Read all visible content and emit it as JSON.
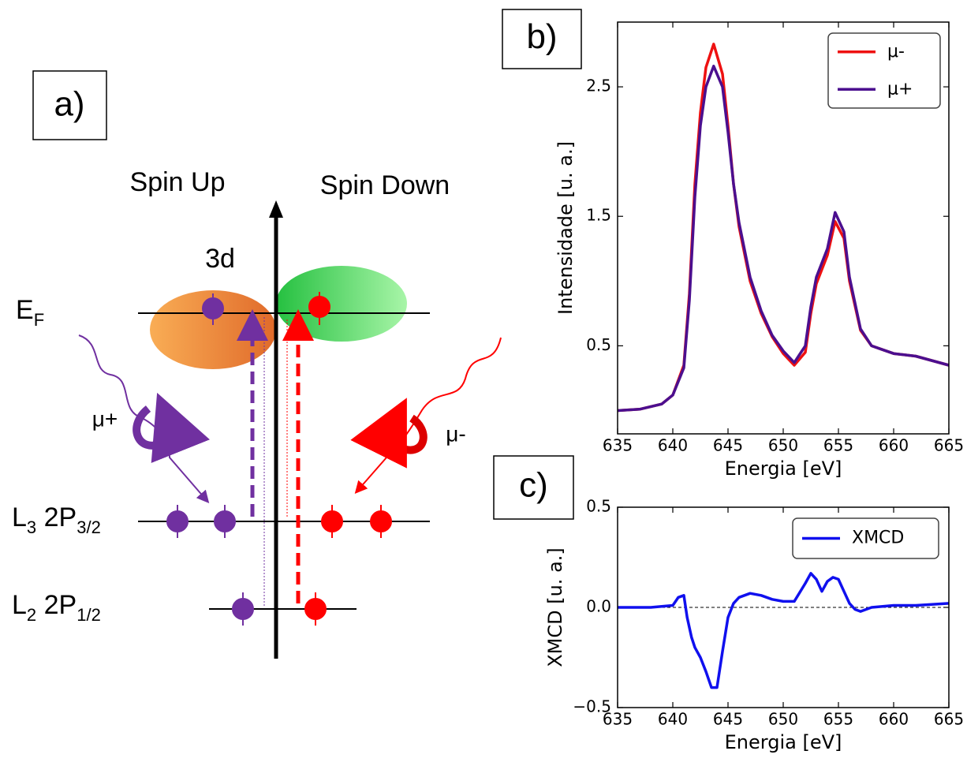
{
  "diagram": {
    "label": "a)",
    "spin_up": "Spin Up",
    "spin_down": "Spin Down",
    "orbital": "3d",
    "fermi": {
      "main": "E",
      "sub": "F"
    },
    "mu_plus": "μ+",
    "mu_minus": "μ-",
    "l3": {
      "main": "L",
      "sub": "3",
      "main2": " 2P",
      "sub2": "3/2"
    },
    "l2": {
      "main": "L",
      "sub": "2",
      "main2": " 2P",
      "sub2": "1/2"
    }
  },
  "chart_data": [
    {
      "type": "line",
      "panel_label": "b)",
      "x_label": "Energia [eV]",
      "y_label": "Intensidade [u. a.]",
      "xlim": [
        635,
        665
      ],
      "xticks": [
        635,
        640,
        645,
        650,
        655,
        660,
        665
      ],
      "ylim": [
        -0.18,
        3.0
      ],
      "yticks": [
        0.5,
        1.5,
        2.5
      ],
      "legend": "upper right",
      "x": [
        635,
        637,
        639,
        640,
        641,
        641.5,
        642,
        642.5,
        643,
        643.7,
        644.5,
        645,
        645.5,
        646,
        647,
        648,
        649,
        650,
        651,
        652,
        652.5,
        653,
        654,
        654.7,
        655.5,
        656,
        657,
        658,
        659,
        660,
        662,
        665
      ],
      "series": [
        {
          "name": "μ-",
          "color": "#ee1111",
          "values": [
            0.0,
            0.01,
            0.05,
            0.12,
            0.35,
            0.9,
            1.75,
            2.3,
            2.65,
            2.83,
            2.6,
            2.2,
            1.75,
            1.42,
            1.0,
            0.75,
            0.57,
            0.44,
            0.35,
            0.45,
            0.75,
            0.98,
            1.2,
            1.46,
            1.33,
            1.0,
            0.62,
            0.5,
            0.47,
            0.44,
            0.42,
            0.35
          ]
        },
        {
          "name": "μ+",
          "color": "#4b0f8f",
          "values": [
            0.0,
            0.01,
            0.05,
            0.12,
            0.33,
            0.85,
            1.65,
            2.2,
            2.5,
            2.66,
            2.5,
            2.15,
            1.75,
            1.45,
            1.03,
            0.77,
            0.58,
            0.46,
            0.37,
            0.5,
            0.8,
            1.03,
            1.25,
            1.53,
            1.38,
            1.03,
            0.63,
            0.5,
            0.47,
            0.44,
            0.42,
            0.35
          ]
        }
      ]
    },
    {
      "type": "line",
      "panel_label": "c)",
      "x_label": "Energia [eV]",
      "y_label": "XMCD [u. a.]",
      "xlim": [
        635,
        665
      ],
      "xticks": [
        635,
        640,
        645,
        650,
        655,
        660,
        665
      ],
      "ylim": [
        -0.5,
        0.5
      ],
      "yticks": [
        {
          "value": -0.5,
          "label": "−0.5"
        },
        {
          "value": 0,
          "label": "0.0"
        },
        0.5
      ],
      "legend": "upper right",
      "zero_line": true,
      "x": [
        635,
        638,
        640,
        640.5,
        641,
        641.3,
        641.7,
        642,
        642.5,
        643,
        643.5,
        644,
        644.5,
        645,
        645.5,
        646,
        647,
        648,
        649,
        650,
        651,
        652,
        652.5,
        653,
        653.5,
        654,
        654.5,
        655,
        655.5,
        656,
        656.5,
        657,
        658,
        660,
        662,
        665
      ],
      "series": [
        {
          "name": "XMCD",
          "color": "#1010ee",
          "values": [
            0.0,
            0.0,
            0.01,
            0.05,
            0.06,
            -0.05,
            -0.15,
            -0.2,
            -0.25,
            -0.32,
            -0.4,
            -0.4,
            -0.22,
            -0.05,
            0.02,
            0.05,
            0.07,
            0.06,
            0.04,
            0.03,
            0.03,
            0.12,
            0.17,
            0.14,
            0.08,
            0.13,
            0.15,
            0.14,
            0.08,
            0.02,
            -0.01,
            -0.02,
            0.0,
            0.01,
            0.01,
            0.02
          ]
        }
      ]
    }
  ]
}
